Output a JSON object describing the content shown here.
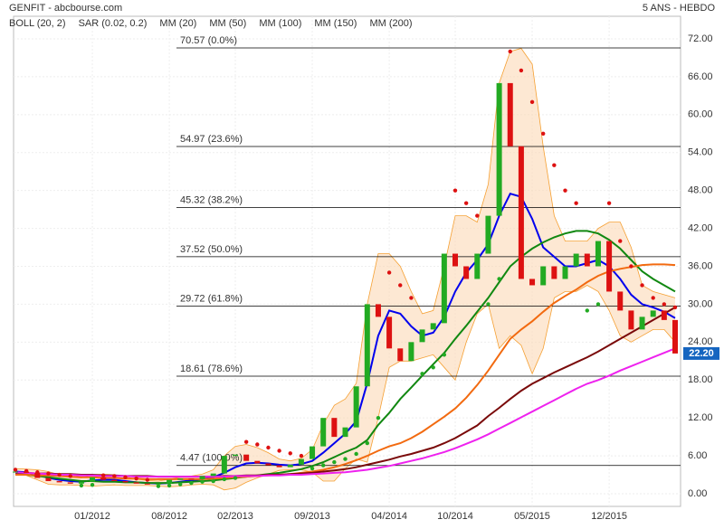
{
  "chart_data": {
    "type": "candlestick",
    "title": "GENFIT - abcbourse.com",
    "subtitle": "5 ANS - HEBDO",
    "categories": [
      null,
      null,
      null,
      null,
      null,
      null,
      null,
      "01/2012",
      null,
      null,
      null,
      null,
      null,
      null,
      "08/2012",
      null,
      null,
      null,
      null,
      null,
      "02/2013",
      null,
      null,
      null,
      null,
      null,
      null,
      "09/2013",
      null,
      null,
      null,
      null,
      null,
      null,
      "04/2014",
      null,
      null,
      null,
      null,
      null,
      "10/2014",
      null,
      null,
      null,
      null,
      null,
      null,
      "05/2015",
      null,
      null,
      null,
      null,
      null,
      null,
      "12/2015",
      null,
      null,
      null,
      null,
      null,
      null
    ],
    "close": [
      3.5,
      3.3,
      2.5,
      2.0,
      1.8,
      1.6,
      1.9,
      2.6,
      2.2,
      2.0,
      1.8,
      1.6,
      1.5,
      1.6,
      2.2,
      2.4,
      2.3,
      2.8,
      3.2,
      6.0,
      6.2,
      5.2,
      4.8,
      4.5,
      4.2,
      4.6,
      5.5,
      7.5,
      12.0,
      9.0,
      10.5,
      17.0,
      30.0,
      28.0,
      23.0,
      21.0,
      24.0,
      26.0,
      27.0,
      38.0,
      36.0,
      34.0,
      38.0,
      44.0,
      65.0,
      55.0,
      34.0,
      33.0,
      36.0,
      34.0,
      36.0,
      38.0,
      36.0,
      40.0,
      32.0,
      29.0,
      26.0,
      28.0,
      29.0,
      27.5,
      22.2
    ],
    "up_color": "#22aa22",
    "down_color": "#dd1111",
    "series": [
      {
        "name": "BOLL (20, 2)",
        "color": "#f5a033",
        "upper": [
          4,
          3.9,
          3.8,
          3.5,
          3.0,
          2.6,
          2.5,
          3.0,
          3.1,
          3.0,
          2.7,
          2.3,
          2.1,
          2.0,
          2.3,
          2.6,
          2.8,
          3.1,
          3.8,
          6.0,
          7.5,
          7.8,
          7.3,
          6.5,
          5.5,
          5.2,
          5.6,
          7.0,
          11.0,
          14.0,
          15.0,
          17.5,
          30.0,
          38.0,
          38.0,
          36.0,
          32.0,
          28.5,
          29.0,
          36.0,
          44.0,
          44.0,
          43.0,
          49.0,
          65.0,
          70.0,
          70.5,
          68.0,
          55.0,
          44.0,
          40.0,
          40.0,
          40.0,
          42.0,
          43.0,
          43.0,
          39.0,
          33.0,
          32.0,
          31.5,
          31.0
        ],
        "lower": [
          3.0,
          2.9,
          2.2,
          1.5,
          1.4,
          1.4,
          1.3,
          1.2,
          1.3,
          1.4,
          1.3,
          1.3,
          1.3,
          1.2,
          1.1,
          1.2,
          1.4,
          1.5,
          1.4,
          0.6,
          0.9,
          1.8,
          2.5,
          3.1,
          3.7,
          3.8,
          3.8,
          3.4,
          2.0,
          2.0,
          4.0,
          5.5,
          5.0,
          12.0,
          20.0,
          21.0,
          21.0,
          21.5,
          22.0,
          20.0,
          18.0,
          24.0,
          28.5,
          30.0,
          23.0,
          25.0,
          23.5,
          19.0,
          23.0,
          31.0,
          32.0,
          32.0,
          33.0,
          32.0,
          29.0,
          25.0,
          24.0,
          25.0,
          26.0,
          26.0,
          24.0
        ]
      },
      {
        "name": "SAR (0.02, 0.2)",
        "color": "#dd1111",
        "dots": true,
        "values": [
          3.8,
          3.6,
          3.4,
          3.2,
          3.0,
          2.8,
          1.3,
          1.4,
          2.9,
          2.8,
          2.6,
          2.4,
          2.2,
          1.2,
          1.3,
          1.5,
          1.7,
          1.9,
          2.0,
          2.3,
          2.5,
          8.2,
          7.8,
          7.3,
          6.8,
          6.4,
          6.0,
          4.0,
          4.5,
          5.0,
          5.5,
          6.3,
          8.0,
          12.0,
          35.0,
          33.0,
          31.0,
          19.0,
          20.0,
          22.0,
          48.0,
          46.0,
          44.0,
          30.0,
          34.0,
          70.0,
          67.0,
          62.0,
          57.0,
          52.0,
          48.0,
          46.0,
          29.0,
          30.0,
          46.0,
          40.0,
          36.0,
          33.0,
          31.0,
          30.0,
          29.5
        ]
      },
      {
        "name": "MM (20)",
        "color": "#0000ee",
        "values": [
          3.5,
          3.4,
          3.0,
          2.5,
          2.2,
          2.0,
          1.9,
          2.1,
          2.2,
          2.2,
          2.0,
          1.8,
          1.7,
          1.6,
          1.7,
          1.9,
          2.1,
          2.3,
          2.6,
          3.3,
          4.2,
          4.8,
          4.9,
          4.8,
          4.6,
          4.5,
          4.7,
          5.2,
          6.5,
          8.0,
          9.5,
          11.5,
          17.5,
          25.0,
          29.0,
          28.5,
          26.5,
          25.0,
          25.5,
          28.0,
          32.0,
          35.0,
          37.0,
          39.5,
          44.0,
          47.5,
          47.0,
          43.5,
          39.0,
          37.5,
          36.0,
          36.0,
          36.5,
          37.0,
          36.0,
          34.0,
          31.5,
          30.0,
          29.5,
          28.8,
          27.8
        ]
      },
      {
        "name": "MM (50)",
        "color": "#118811",
        "values": [
          3.2,
          3.0,
          2.8,
          2.6,
          2.4,
          2.2,
          2.0,
          2.0,
          1.9,
          1.9,
          1.8,
          1.8,
          1.7,
          1.7,
          1.7,
          1.8,
          1.9,
          2.0,
          2.1,
          2.3,
          2.5,
          2.7,
          2.9,
          3.1,
          3.3,
          3.6,
          3.9,
          4.4,
          5.0,
          5.8,
          6.6,
          7.3,
          8.5,
          10.9,
          12.8,
          15.0,
          16.8,
          18.7,
          20.5,
          22.3,
          24.5,
          26.6,
          28.8,
          31.0,
          33.5,
          36.0,
          37.5,
          38.8,
          39.8,
          40.6,
          41.2,
          41.6,
          41.6,
          41.2,
          40.2,
          38.8,
          37.0,
          35.2,
          34.0,
          33.0,
          32.0
        ]
      },
      {
        "name": "MM (100)",
        "color": "#f26a10",
        "values": [
          3.0,
          3.0,
          2.9,
          2.9,
          2.8,
          2.7,
          2.6,
          2.6,
          2.5,
          2.5,
          2.4,
          2.4,
          2.3,
          2.3,
          2.3,
          2.3,
          2.3,
          2.3,
          2.4,
          2.5,
          2.6,
          2.7,
          2.8,
          2.9,
          3.0,
          3.1,
          3.3,
          3.5,
          3.8,
          4.2,
          4.7,
          5.3,
          6.0,
          6.8,
          7.5,
          8.0,
          8.8,
          9.8,
          11.0,
          12.2,
          13.5,
          15.2,
          17.2,
          19.5,
          22.0,
          24.5,
          26.0,
          27.3,
          28.8,
          30.2,
          31.3,
          32.3,
          33.5,
          34.5,
          35.2,
          35.6,
          35.9,
          36.2,
          36.3,
          36.3,
          36.2
        ]
      },
      {
        "name": "MM (150)",
        "color": "#7a0a0a",
        "values": [
          3.3,
          3.3,
          3.2,
          3.2,
          3.1,
          3.1,
          3.0,
          3.0,
          2.9,
          2.9,
          2.8,
          2.8,
          2.8,
          2.7,
          2.7,
          2.7,
          2.7,
          2.7,
          2.7,
          2.8,
          2.8,
          2.9,
          2.9,
          3.0,
          3.0,
          3.1,
          3.2,
          3.3,
          3.5,
          3.7,
          3.9,
          4.2,
          4.6,
          5.0,
          5.4,
          5.9,
          6.3,
          6.8,
          7.3,
          8.0,
          8.8,
          9.8,
          10.8,
          12.3,
          13.6,
          15.0,
          16.3,
          17.4,
          18.3,
          19.2,
          20.0,
          20.8,
          21.6,
          22.5,
          23.5,
          24.5,
          25.5,
          26.5,
          27.5,
          28.5,
          29.5
        ]
      },
      {
        "name": "MM (200)",
        "color": "#ee22ee",
        "values": [
          3.4,
          3.3,
          3.2,
          3.1,
          3.0,
          3.0,
          2.9,
          2.9,
          2.8,
          2.8,
          2.8,
          2.7,
          2.7,
          2.7,
          2.7,
          2.7,
          2.7,
          2.7,
          2.7,
          2.7,
          2.8,
          2.8,
          2.8,
          2.9,
          2.9,
          3.0,
          3.0,
          3.1,
          3.2,
          3.3,
          3.4,
          3.6,
          3.8,
          4.1,
          4.4,
          4.8,
          5.2,
          5.6,
          6.1,
          6.6,
          7.2,
          7.9,
          8.6,
          9.4,
          10.3,
          11.2,
          12.1,
          13.0,
          13.9,
          14.8,
          15.7,
          16.6,
          17.4,
          18.0,
          18.7,
          19.5,
          20.2,
          20.9,
          21.6,
          22.3,
          23.0
        ]
      }
    ],
    "fib_levels": [
      {
        "value": 70.57,
        "label": "70.57  (0.0%)"
      },
      {
        "value": 54.97,
        "label": "54.97  (23.6%)"
      },
      {
        "value": 45.32,
        "label": "45.32  (38.2%)"
      },
      {
        "value": 37.52,
        "label": "37.52  (50.0%)"
      },
      {
        "value": 29.72,
        "label": "29.72  (61.8%)"
      },
      {
        "value": 18.61,
        "label": "18.61  (78.6%)"
      },
      {
        "value": 4.47,
        "label": "4.47  (100.0%)"
      }
    ],
    "last": {
      "value": 22.2,
      "label": "22.20"
    },
    "ylim": [
      0,
      72
    ],
    "yticks": [
      {
        "value": 0,
        "label": "0.00"
      },
      {
        "value": 6,
        "label": "6.00"
      },
      {
        "value": 12,
        "label": "12.00"
      },
      {
        "value": 18,
        "label": "18.00"
      },
      {
        "value": 24,
        "label": "24.00"
      },
      {
        "value": 30,
        "label": "30.00"
      },
      {
        "value": 36,
        "label": "36.00"
      },
      {
        "value": 42,
        "label": "42.00"
      },
      {
        "value": 48,
        "label": "48.00"
      },
      {
        "value": 54,
        "label": "54.00"
      },
      {
        "value": 60,
        "label": "60.00"
      },
      {
        "value": 66,
        "label": "66.00"
      },
      {
        "value": 72,
        "label": "72.00"
      }
    ],
    "grid": true
  }
}
